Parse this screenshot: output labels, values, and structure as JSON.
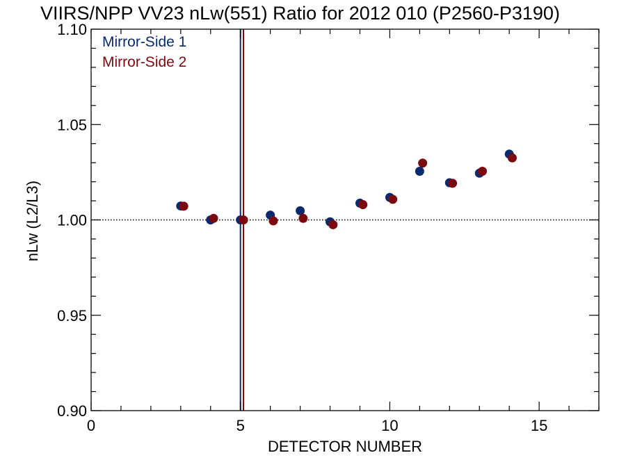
{
  "chart_data": {
    "type": "scatter",
    "title": "VIIRS/NPP VV23 nLw(551) Ratio for 2012 010 (P2560-P3190)",
    "xlabel": "DETECTOR NUMBER",
    "ylabel": "nLw (L2/L3)",
    "xlim": [
      0,
      17
    ],
    "ylim": [
      0.9,
      1.1
    ],
    "x_ticks": [
      "0",
      "5",
      "10",
      "15"
    ],
    "y_ticks": [
      "0.90",
      "0.95",
      "1.00",
      "1.05",
      "1.10"
    ],
    "reference_line_y": 1.0,
    "vertical_lines": [
      {
        "x": 5.0,
        "color": "#0a2a6e"
      },
      {
        "x": 5.1,
        "color": "#7a0a0f"
      }
    ],
    "legend_position": "top-left",
    "series": [
      {
        "name": "Mirror-Side 1",
        "color": "#0a2a6e",
        "x": [
          3,
          4,
          5,
          6,
          7,
          8,
          9,
          10,
          11,
          12,
          13,
          14
        ],
        "y": [
          1.0073,
          1.0,
          1.0,
          1.0025,
          1.0048,
          0.999,
          1.0088,
          1.0118,
          1.0255,
          1.0195,
          1.0245,
          1.0345
        ]
      },
      {
        "name": "Mirror-Side 2",
        "color": "#7a0a0f",
        "x": [
          3.1,
          4.1,
          5.1,
          6.1,
          7.1,
          8.1,
          9.1,
          10.1,
          11.1,
          12.1,
          13.1,
          14.1
        ],
        "y": [
          1.0072,
          1.0008,
          1.0,
          0.9995,
          1.0008,
          0.9975,
          1.008,
          1.0108,
          1.0298,
          1.0192,
          1.0255,
          1.0325
        ]
      }
    ]
  }
}
